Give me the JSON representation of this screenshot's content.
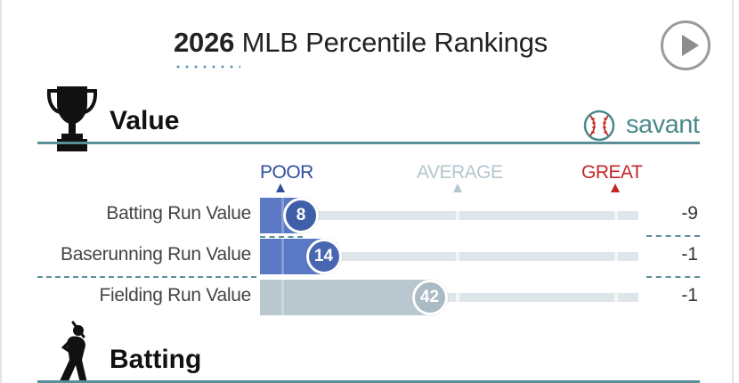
{
  "header": {
    "year": "2026",
    "title_rest": " MLB Percentile Rankings",
    "play_icon": "play-icon"
  },
  "value_section": {
    "title": "Value",
    "icon": "trophy-icon",
    "brand": "savant",
    "brand_icon": "baseball-icon"
  },
  "scale": {
    "poor": "POOR",
    "average": "AVERAGE",
    "great": "GREAT",
    "colors": {
      "poor": "#2f4f9b",
      "average": "#b4c7cd",
      "great": "#c52525"
    }
  },
  "metrics": [
    {
      "label": "Batting Run Value",
      "percentile": 8,
      "percentile_label": "8",
      "value": "-9",
      "fill_color": "#5b78c4",
      "bubble_color": "#3f5fa8"
    },
    {
      "label": "Baserunning Run Value",
      "percentile": 14,
      "percentile_label": "14",
      "value": "-1",
      "fill_color": "#5b78c4",
      "bubble_color": "#4966b2"
    },
    {
      "label": "Fielding Run Value",
      "percentile": 42,
      "percentile_label": "42",
      "value": "-1",
      "fill_color": "#b9c8cf",
      "bubble_color": "#aabbc3"
    }
  ],
  "batting_section": {
    "title": "Batting",
    "icon": "batter-icon"
  }
}
